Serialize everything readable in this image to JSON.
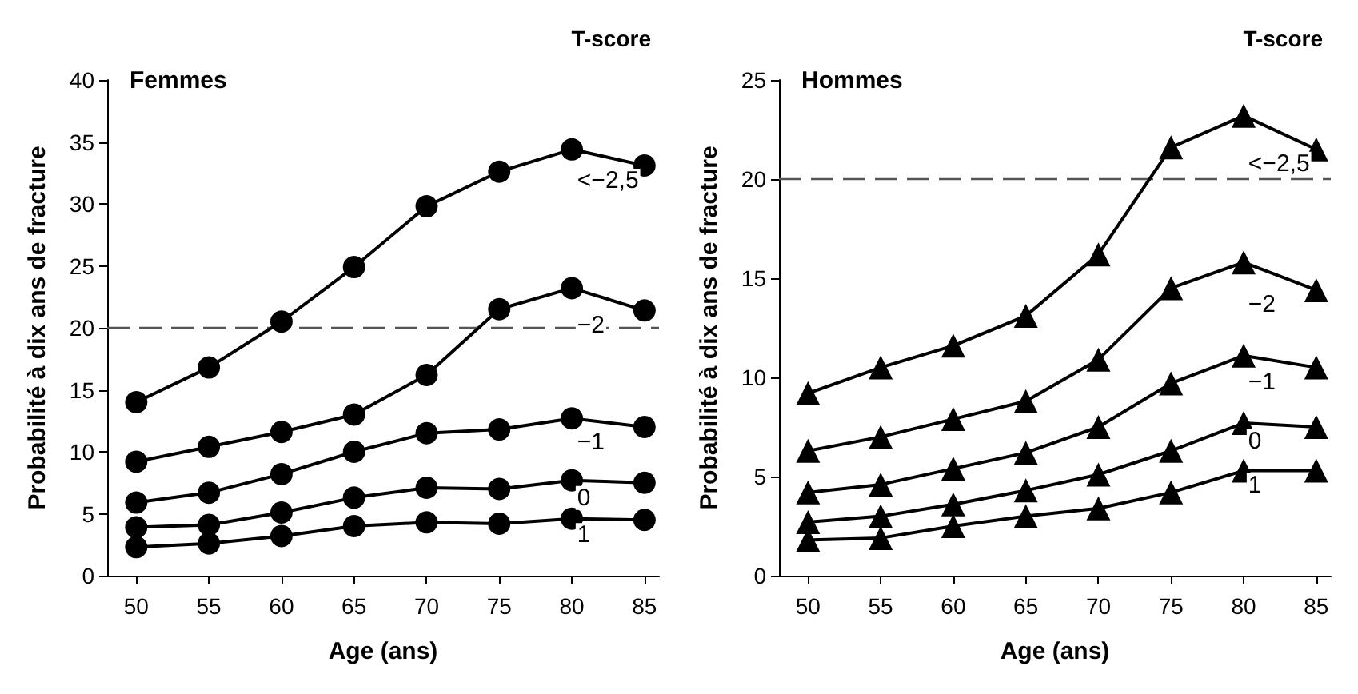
{
  "chart_data": [
    {
      "type": "line",
      "title": "Femmes",
      "legend_title": "T-score",
      "xlabel": "Age (ans)",
      "ylabel": "Probabilité à dix ans de fracture",
      "x": [
        50,
        55,
        60,
        65,
        70,
        75,
        80,
        85
      ],
      "xlim": [
        48,
        86
      ],
      "xticks": [
        50,
        55,
        60,
        65,
        70,
        75,
        80,
        85
      ],
      "ylim": [
        0,
        40
      ],
      "yticks": [
        0,
        5,
        10,
        15,
        20,
        25,
        30,
        35,
        40
      ],
      "grid": false,
      "legend": false,
      "marker": "circle",
      "line_style": "solid",
      "ref_lines": [
        {
          "axis": "y",
          "value": 20,
          "color": "#555555",
          "line_style": "dashed"
        }
      ],
      "series": [
        {
          "name": "<−2,5",
          "color": "#000000",
          "values": [
            14.0,
            16.8,
            20.5,
            24.9,
            29.8,
            32.6,
            34.4,
            33.1
          ]
        },
        {
          "name": "−2",
          "color": "#000000",
          "values": [
            9.2,
            10.4,
            11.6,
            13.0,
            16.2,
            21.5,
            23.2,
            21.4
          ]
        },
        {
          "name": "−1",
          "color": "#000000",
          "values": [
            5.9,
            6.7,
            8.2,
            10.0,
            11.5,
            11.8,
            12.7,
            12.0
          ]
        },
        {
          "name": "0",
          "color": "#000000",
          "values": [
            3.9,
            4.1,
            5.1,
            6.3,
            7.1,
            7.0,
            7.7,
            7.5
          ]
        },
        {
          "name": "1",
          "color": "#000000",
          "values": [
            2.3,
            2.6,
            3.2,
            4.0,
            4.3,
            4.2,
            4.6,
            4.5
          ]
        }
      ]
    },
    {
      "type": "line",
      "title": "Hommes",
      "legend_title": "T-score",
      "xlabel": "Age (ans)",
      "ylabel": "Probabilité à dix ans de fracture",
      "x": [
        50,
        55,
        60,
        65,
        70,
        75,
        80,
        85
      ],
      "xlim": [
        48,
        86
      ],
      "xticks": [
        50,
        55,
        60,
        65,
        70,
        75,
        80,
        85
      ],
      "ylim": [
        0,
        25
      ],
      "yticks": [
        0,
        5,
        10,
        15,
        20,
        25
      ],
      "grid": false,
      "legend": false,
      "marker": "triangle",
      "line_style": "solid",
      "ref_lines": [
        {
          "axis": "y",
          "value": 20,
          "color": "#555555",
          "line_style": "dashed"
        }
      ],
      "series": [
        {
          "name": "<−2,5",
          "color": "#000000",
          "values": [
            9.2,
            10.5,
            11.6,
            13.1,
            16.2,
            21.6,
            23.2,
            21.5
          ]
        },
        {
          "name": "−2",
          "color": "#000000",
          "values": [
            6.3,
            7.0,
            7.9,
            8.8,
            10.9,
            14.5,
            15.8,
            14.4
          ]
        },
        {
          "name": "−1",
          "color": "#000000",
          "values": [
            4.2,
            4.6,
            5.4,
            6.2,
            7.5,
            9.7,
            11.1,
            10.5
          ]
        },
        {
          "name": "0",
          "color": "#000000",
          "values": [
            2.7,
            3.0,
            3.6,
            4.3,
            5.1,
            6.3,
            7.7,
            7.5
          ]
        },
        {
          "name": "1",
          "color": "#000000",
          "values": [
            1.8,
            1.9,
            2.5,
            3.0,
            3.4,
            4.2,
            5.3,
            5.3
          ]
        }
      ]
    }
  ]
}
